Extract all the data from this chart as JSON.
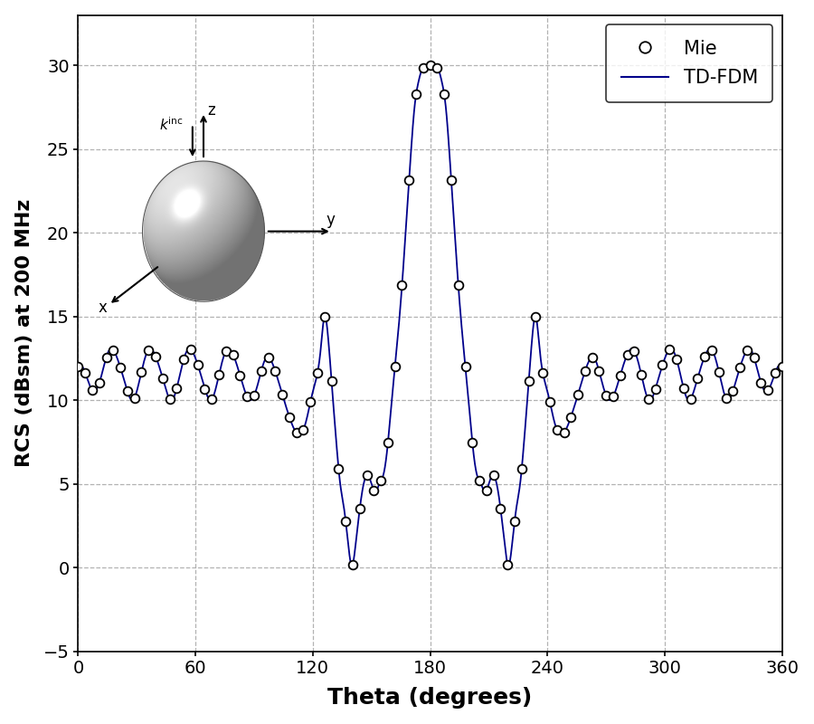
{
  "title": "",
  "xlabel": "Theta (degrees)",
  "ylabel": "RCS (dBsm) at 200 MHz",
  "xlim": [
    0,
    360
  ],
  "ylim": [
    -5,
    33
  ],
  "xticks": [
    0,
    60,
    120,
    180,
    240,
    300,
    360
  ],
  "yticks": [
    -5,
    0,
    5,
    10,
    15,
    20,
    25,
    30
  ],
  "line_color": "#00008B",
  "marker_color": "#000000",
  "grid_color": "#aaaaaa",
  "background_color": "#ffffff",
  "legend_labels": [
    "Mie",
    "TD-FDM"
  ],
  "xlabel_fontsize": 18,
  "ylabel_fontsize": 16,
  "tick_fontsize": 14,
  "legend_fontsize": 15
}
